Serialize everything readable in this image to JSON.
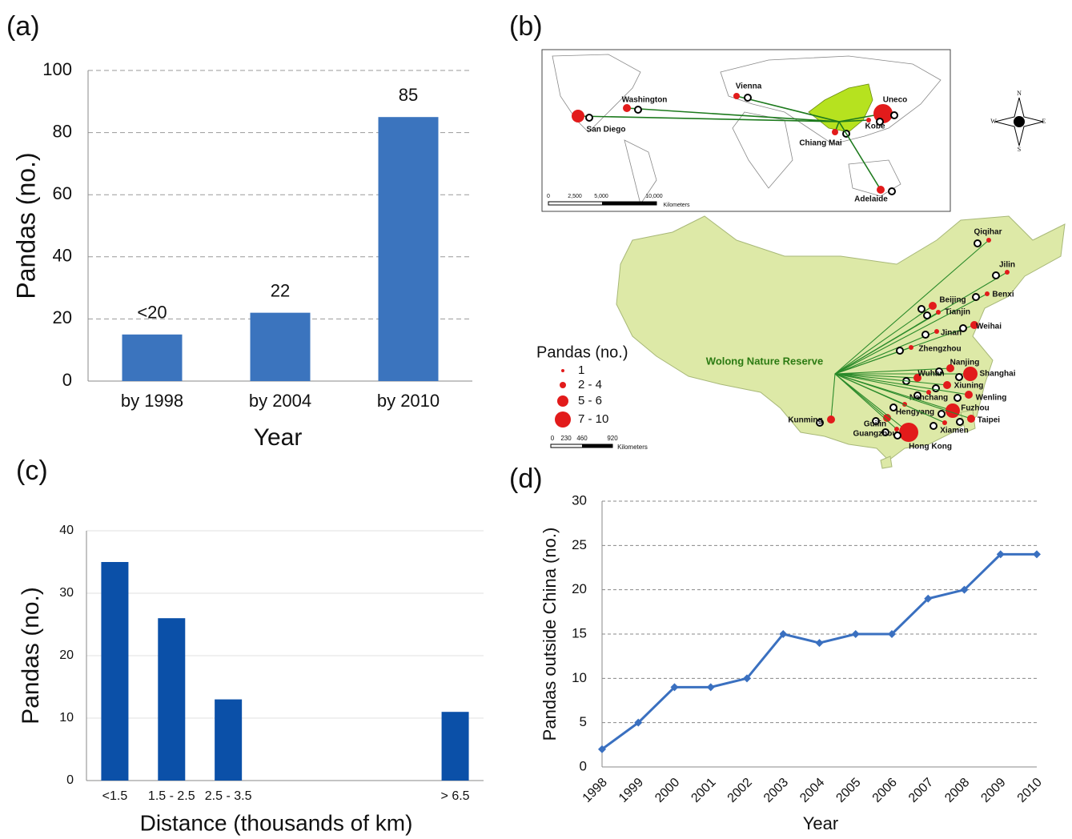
{
  "chart_data": [
    {
      "type": "bar",
      "panel_label": "(a)",
      "x_label": "Year",
      "y_label": "Pandas (no.)",
      "categories": [
        "by 1998",
        "by 2004",
        "by 2010"
      ],
      "values": [
        15,
        22,
        85
      ],
      "value_labels": [
        "<20",
        "22",
        "85"
      ],
      "color": "#3b74be",
      "ylim": [
        0,
        100
      ],
      "yticks": [
        0,
        20,
        40,
        60,
        80,
        100
      ],
      "grid": true
    },
    {
      "type": "bar",
      "panel_label": "(c)",
      "x_label": "Distance (thousands of km)",
      "y_label": "Pandas (no.)",
      "categories": [
        "<1.5",
        "1.5 - 2.5",
        "2.5 - 3.5",
        null,
        null,
        null,
        "> 6.5"
      ],
      "values": [
        35,
        26,
        13,
        0,
        0,
        0,
        11
      ],
      "color": "#0b50a8",
      "ylim": [
        0,
        40
      ],
      "yticks": [
        0,
        10,
        20,
        30,
        40
      ],
      "grid": true
    },
    {
      "type": "line",
      "panel_label": "(d)",
      "x_label": "Year",
      "y_label": "Pandas outside China (no.)",
      "categories": [
        "1998",
        "1999",
        "2000",
        "2001",
        "2002",
        "2003",
        "2004",
        "2005",
        "2006",
        "2007",
        "2008",
        "2009",
        "2010"
      ],
      "values": [
        2,
        5,
        9,
        9,
        10,
        15,
        14,
        15,
        15,
        19,
        20,
        24,
        24
      ],
      "color": "#3a70c0",
      "ylim": [
        0,
        30
      ],
      "yticks": [
        0,
        5,
        10,
        15,
        20,
        25,
        30
      ],
      "grid": true
    }
  ],
  "map": {
    "panel_label": "(b)",
    "inset_labels": [
      "Vienna",
      "Washington",
      "Uneco",
      "San Diego",
      "Kobe",
      "Chiang Mai",
      "Adelaide"
    ],
    "inset_scale": [
      "0",
      "2,500",
      "5,000",
      "10,000",
      "Kilometers"
    ],
    "compass": [
      "N",
      "S",
      "E",
      "W"
    ],
    "china_labels": [
      "Qiqihar",
      "Jilin",
      "Benxi",
      "Beijing",
      "Tianjin",
      "Weihai",
      "Jinan",
      "Zhengzhou",
      "Nanjing",
      "Shanghai",
      "Wuhan",
      "Xiuning",
      "Nanchang",
      "Wenling",
      "Fuzhou",
      "Hengyang",
      "Guilin",
      "Taipei",
      "Kunming",
      "Guangzhou",
      "Xiamen",
      "Hong Kong"
    ],
    "reserve": "Wolong Nature Reserve",
    "legend_title": "Pandas (no.)",
    "legend_items": [
      "1",
      "2 - 4",
      "5 - 6",
      "7 - 10"
    ],
    "china_scale": [
      "0",
      "230",
      "460",
      "920",
      "Kilometers"
    ]
  }
}
